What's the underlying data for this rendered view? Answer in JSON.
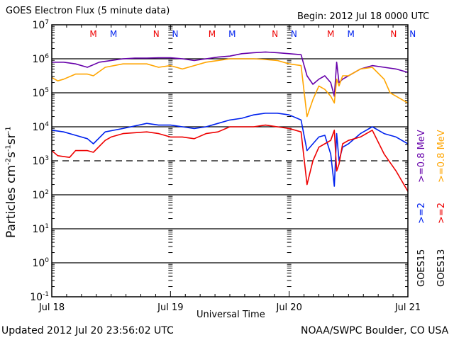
{
  "header": {
    "title": "GOES Electron Flux (5 minute data)",
    "begin": "Begin: 2012 Jul 18 0000 UTC"
  },
  "footer": {
    "updated": "Updated 2012 Jul 20 23:56:02 UTC",
    "source": "NOAA/SWPC Boulder, CO USA"
  },
  "legend": {
    "goes15_label": "GOES15",
    "goes13_label": "GOES13",
    "goes15_ge2": ">=2",
    "goes15_ge08": ">=0.8 MeV",
    "goes13_ge2": ">=2",
    "goes13_ge08": ">=0.8 MeV"
  },
  "colors": {
    "goes15_ge08": "#6600aa",
    "goes15_ge2": "#0022ee",
    "goes13_ge08": "#ffa500",
    "goes13_ge2": "#ee0000",
    "grid": "#000000"
  },
  "markers": [
    {
      "label": "M",
      "color": "#ee0000",
      "day": 0.35
    },
    {
      "label": "M",
      "color": "#0022ee",
      "day": 0.52
    },
    {
      "label": "N",
      "color": "#ee0000",
      "day": 0.88
    },
    {
      "label": "N",
      "color": "#0022ee",
      "day": 1.04
    },
    {
      "label": "M",
      "color": "#ee0000",
      "day": 1.35
    },
    {
      "label": "M",
      "color": "#0022ee",
      "day": 1.52
    },
    {
      "label": "N",
      "color": "#ee0000",
      "day": 1.88
    },
    {
      "label": "N",
      "color": "#0022ee",
      "day": 2.04
    },
    {
      "label": "M",
      "color": "#ee0000",
      "day": 2.35
    },
    {
      "label": "M",
      "color": "#0022ee",
      "day": 2.52
    },
    {
      "label": "N",
      "color": "#ee0000",
      "day": 2.88
    },
    {
      "label": "N",
      "color": "#0022ee",
      "day": 3.04
    }
  ],
  "chart_data": {
    "type": "line",
    "title": "GOES Electron Flux (5 minute data)",
    "xlabel": "Universal Time",
    "ylabel": "Particles cm^-2 s^-1 sr^-1",
    "xlim": [
      0,
      3
    ],
    "ylim_log10": [
      -1,
      7
    ],
    "x_ticks": [
      {
        "day": 0,
        "label": "Jul 18"
      },
      {
        "day": 1,
        "label": "Jul 19"
      },
      {
        "day": 2,
        "label": "Jul 20"
      },
      {
        "day": 3,
        "label": "Jul 21"
      }
    ],
    "y_ticks": [
      {
        "exp": 7,
        "label": "7"
      },
      {
        "exp": 6,
        "label": "6"
      },
      {
        "exp": 5,
        "label": "5"
      },
      {
        "exp": 4,
        "label": "4"
      },
      {
        "exp": 3,
        "label": "3"
      },
      {
        "exp": 2,
        "label": "2"
      },
      {
        "exp": 1,
        "label": "1"
      },
      {
        "exp": 0,
        "label": "0"
      },
      {
        "exp": -1,
        "label": "-1"
      }
    ],
    "solid_gridlines_exp": [
      6,
      5,
      4,
      2,
      1,
      0
    ],
    "dashed_gridlines_exp": [
      3
    ],
    "series": [
      {
        "name": "GOES15 >=0.8 MeV",
        "key": "goes15_ge08",
        "x": [
          0,
          0.1,
          0.2,
          0.3,
          0.4,
          0.5,
          0.6,
          0.7,
          0.8,
          0.9,
          1.0,
          1.1,
          1.2,
          1.3,
          1.4,
          1.5,
          1.6,
          1.7,
          1.8,
          1.9,
          2.0,
          2.1,
          2.15,
          2.2,
          2.25,
          2.3,
          2.35,
          2.38,
          2.4,
          2.42,
          2.45,
          2.5,
          2.6,
          2.7,
          2.8,
          2.9,
          3.0
        ],
        "log10y": [
          5.9,
          5.9,
          5.85,
          5.75,
          5.9,
          5.95,
          6.0,
          6.02,
          6.02,
          6.03,
          6.03,
          6.0,
          5.95,
          6.0,
          6.05,
          6.08,
          6.15,
          6.18,
          6.2,
          6.18,
          6.15,
          6.12,
          5.5,
          5.25,
          5.4,
          5.5,
          5.3,
          4.9,
          5.9,
          5.3,
          5.4,
          5.5,
          5.7,
          5.8,
          5.75,
          5.7,
          5.6
        ]
      },
      {
        "name": "GOES13 >=0.8 MeV",
        "key": "goes13_ge08",
        "x": [
          0,
          0.05,
          0.1,
          0.2,
          0.3,
          0.35,
          0.45,
          0.6,
          0.8,
          0.9,
          1.0,
          1.1,
          1.2,
          1.3,
          1.4,
          1.5,
          1.6,
          1.7,
          1.8,
          1.9,
          2.0,
          2.1,
          2.15,
          2.2,
          2.25,
          2.3,
          2.35,
          2.38,
          2.4,
          2.42,
          2.45,
          2.5,
          2.6,
          2.7,
          2.8,
          2.85,
          2.9,
          3.0
        ],
        "log10y": [
          5.45,
          5.35,
          5.4,
          5.55,
          5.55,
          5.5,
          5.75,
          5.85,
          5.85,
          5.75,
          5.8,
          5.7,
          5.8,
          5.9,
          5.95,
          6.0,
          6.0,
          6.0,
          5.98,
          5.95,
          5.85,
          5.8,
          4.3,
          4.8,
          5.2,
          5.1,
          4.9,
          4.7,
          5.4,
          5.2,
          5.5,
          5.5,
          5.7,
          5.75,
          5.4,
          5.0,
          4.9,
          4.7
        ]
      },
      {
        "name": "GOES15 >=2 MeV",
        "key": "goes15_ge2",
        "x": [
          0,
          0.1,
          0.2,
          0.3,
          0.35,
          0.45,
          0.6,
          0.8,
          0.9,
          1.0,
          1.1,
          1.2,
          1.3,
          1.4,
          1.5,
          1.6,
          1.7,
          1.8,
          1.9,
          2.0,
          2.1,
          2.15,
          2.2,
          2.25,
          2.3,
          2.35,
          2.38,
          2.4,
          2.42,
          2.45,
          2.5,
          2.6,
          2.7,
          2.8,
          2.9,
          3.0
        ],
        "log10y": [
          3.9,
          3.85,
          3.75,
          3.65,
          3.5,
          3.85,
          3.95,
          4.1,
          4.05,
          4.05,
          4.0,
          3.95,
          4.0,
          4.1,
          4.2,
          4.25,
          4.35,
          4.4,
          4.4,
          4.35,
          4.2,
          3.3,
          3.5,
          3.7,
          3.75,
          3.2,
          2.25,
          3.8,
          3.0,
          3.4,
          3.5,
          3.8,
          4.0,
          3.8,
          3.7,
          3.5
        ]
      },
      {
        "name": "GOES13 >=2 MeV",
        "key": "goes13_ge2",
        "x": [
          0,
          0.05,
          0.15,
          0.2,
          0.3,
          0.35,
          0.45,
          0.5,
          0.6,
          0.8,
          0.9,
          1.0,
          1.1,
          1.2,
          1.3,
          1.4,
          1.5,
          1.6,
          1.7,
          1.8,
          1.9,
          2.0,
          2.1,
          2.15,
          2.2,
          2.25,
          2.3,
          2.35,
          2.38,
          2.4,
          2.42,
          2.45,
          2.5,
          2.6,
          2.7,
          2.8,
          2.9,
          3.0
        ],
        "log10y": [
          3.3,
          3.15,
          3.1,
          3.3,
          3.3,
          3.25,
          3.6,
          3.7,
          3.8,
          3.85,
          3.8,
          3.7,
          3.7,
          3.65,
          3.8,
          3.85,
          4.0,
          4.0,
          4.0,
          4.05,
          4.0,
          3.95,
          3.85,
          2.3,
          3.0,
          3.4,
          3.5,
          3.6,
          3.9,
          2.7,
          2.9,
          3.5,
          3.6,
          3.7,
          3.9,
          3.2,
          2.7,
          2.1
        ]
      }
    ]
  }
}
